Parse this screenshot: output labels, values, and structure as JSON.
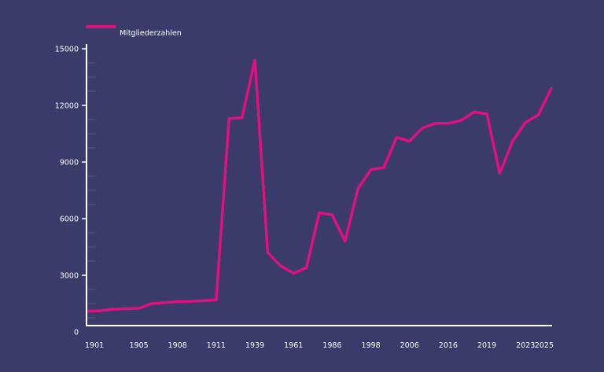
{
  "colors": {
    "background": "#3b3b6b",
    "series": "#e0107f",
    "axis": "#ffffff"
  },
  "chart_data": {
    "type": "line",
    "legend_position": "top-left",
    "series": [
      {
        "name": "Mitgliederzahlen",
        "values": [
          1100,
          1120,
          1200,
          1230,
          1250,
          1500,
          1550,
          1600,
          1620,
          1650,
          1700,
          11300,
          11350,
          14400,
          4200,
          3500,
          3100,
          3400,
          6300,
          6200,
          4800,
          7600,
          8600,
          8700,
          10300,
          10100,
          10800,
          11050,
          11050,
          11200,
          11650,
          11550,
          8400,
          10100,
          11100,
          11500,
          12900
        ]
      }
    ],
    "x_tick_labels": [
      "1901",
      "1905",
      "1908",
      "1911",
      "1939",
      "1961",
      "1986",
      "1998",
      "2006",
      "2016",
      "2019",
      "2023",
      "2025"
    ],
    "x_tick_indices": [
      0,
      4,
      7,
      10,
      13,
      16,
      19,
      22,
      25,
      28,
      31,
      34,
      36
    ],
    "y_ticks": [
      0,
      3000,
      6000,
      9000,
      12000,
      15000
    ],
    "y_tick_labels": [
      "0",
      "3000",
      "6000",
      "9000",
      "12000",
      "15000"
    ],
    "ylim": [
      0,
      15000
    ],
    "grid": false
  }
}
